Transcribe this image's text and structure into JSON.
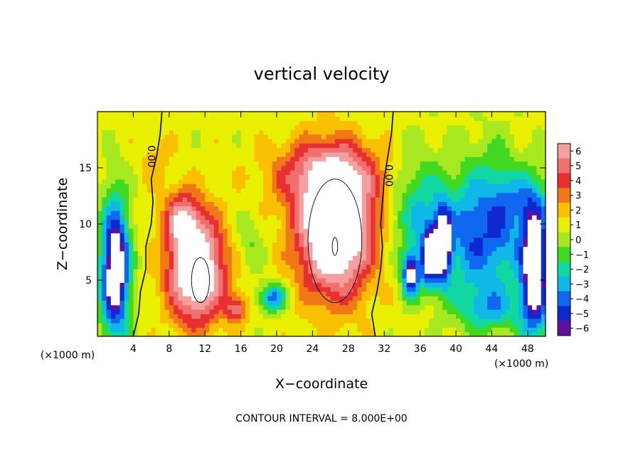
{
  "chart_data": {
    "type": "heatmap",
    "title": "vertical velocity",
    "xlabel": "X−coordinate",
    "ylabel": "Z−coordinate",
    "x_unit": "(×1000 m)",
    "y_unit": "(×1000 m)",
    "xlim": [
      0,
      50
    ],
    "ylim": [
      0,
      20
    ],
    "x_ticks": [
      "4",
      "8",
      "12",
      "16",
      "20",
      "24",
      "28",
      "32",
      "36",
      "40",
      "44",
      "48"
    ],
    "y_ticks": [
      "5",
      "10",
      "15"
    ],
    "colorbar": {
      "min": -6,
      "max": 6,
      "labels": [
        "6",
        "5",
        "4",
        "3",
        "2",
        "1",
        "0",
        "−1",
        "−2",
        "−3",
        "−4",
        "−5",
        "−6"
      ],
      "colors": [
        "#f5a0a0",
        "#f07070",
        "#e83030",
        "#f07818",
        "#f8c000",
        "#e8f000",
        "#a8e820",
        "#40d820",
        "#10d8a0",
        "#10b8e8",
        "#1068f0",
        "#1028d0",
        "#6010a0"
      ]
    },
    "contour_labels": [
      "0.00",
      "0.00"
    ],
    "note": "CONTOUR INTERVAL = 8.000E+00",
    "features": [
      {
        "x": 11.5,
        "z": 5.0,
        "w": 8,
        "kind": "updraft"
      },
      {
        "x": 26.5,
        "z": 8.5,
        "w": 9,
        "kind": "updraft"
      },
      {
        "x": 2.0,
        "z": 6.0,
        "w": -8,
        "kind": "downdraft"
      },
      {
        "x": 48.5,
        "z": 6.0,
        "w": -8,
        "kind": "downdraft"
      },
      {
        "x": 38.5,
        "z": 8.0,
        "w": -7,
        "kind": "downdraft"
      },
      {
        "x": 34.5,
        "z": 6.0,
        "w": -6,
        "kind": "downdraft"
      }
    ]
  }
}
